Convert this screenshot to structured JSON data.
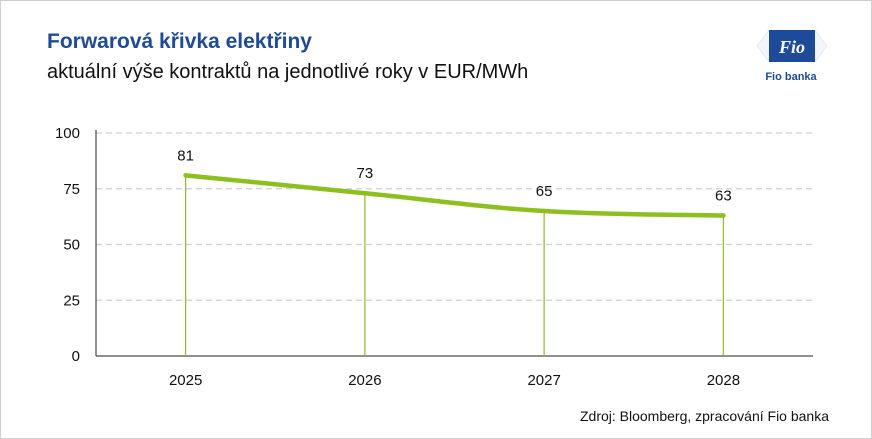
{
  "header": {
    "title": "Forwarová křivka elektřiny",
    "subtitle": "aktuální výše kontraktů na jednotlivé roky v EUR/MWh"
  },
  "logo": {
    "mark": "Fio",
    "name": "Fio banka",
    "color": "#1d4b9a"
  },
  "footer": {
    "source": "Zdroj: Bloomberg, zpracování Fio banka"
  },
  "chart_data": {
    "type": "line",
    "title": "Forwarová křivka elektřiny",
    "subtitle": "aktuální výše kontraktů na jednotlivé roky v EUR/MWh",
    "categories": [
      "2025",
      "2026",
      "2027",
      "2028"
    ],
    "series": [
      {
        "values": [
          81,
          73,
          65,
          63
        ],
        "color": "#8dbf1f"
      }
    ],
    "data_labels": [
      "81",
      "73",
      "65",
      "63"
    ],
    "ylim": [
      0,
      100
    ],
    "yticks": [
      0,
      25,
      50,
      75,
      100
    ],
    "grid": true,
    "drop_lines": true,
    "line_color": "#8dbf1f",
    "grid_color": "#d0d0d0"
  }
}
